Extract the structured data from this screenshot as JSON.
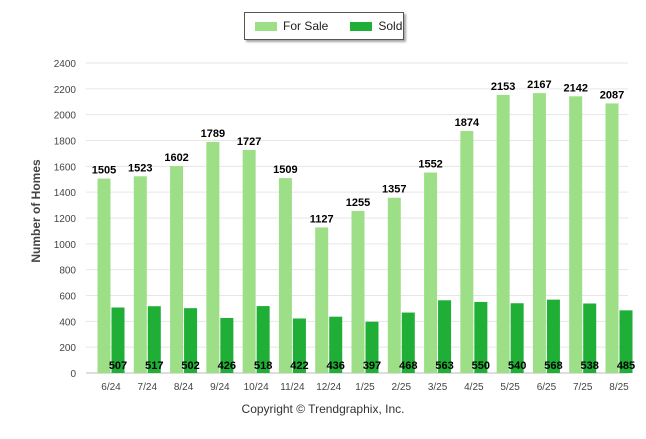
{
  "chart_data": {
    "type": "bar",
    "categories": [
      "6/24",
      "7/24",
      "8/24",
      "9/24",
      "10/24",
      "11/24",
      "12/24",
      "1/25",
      "2/25",
      "3/25",
      "4/25",
      "5/25",
      "6/25",
      "7/25",
      "8/25"
    ],
    "series": [
      {
        "name": "For Sale",
        "color": "#9ddf87",
        "values": [
          1505,
          1523,
          1602,
          1789,
          1727,
          1509,
          1127,
          1255,
          1357,
          1552,
          1874,
          2153,
          2167,
          2142,
          2087
        ]
      },
      {
        "name": "Sold",
        "color": "#1fae36",
        "values": [
          507,
          517,
          502,
          426,
          518,
          422,
          436,
          397,
          468,
          563,
          550,
          540,
          568,
          538,
          485
        ]
      }
    ],
    "ylabel": "Number of Homes",
    "xlabel": "",
    "ylim": [
      0,
      2400
    ],
    "yticks": [
      0,
      200,
      400,
      600,
      800,
      1000,
      1200,
      1400,
      1600,
      1800,
      2000,
      2200,
      2400
    ],
    "grid": true,
    "legend_position": "top-center"
  },
  "credit": "Copyright © Trendgraphix, Inc."
}
